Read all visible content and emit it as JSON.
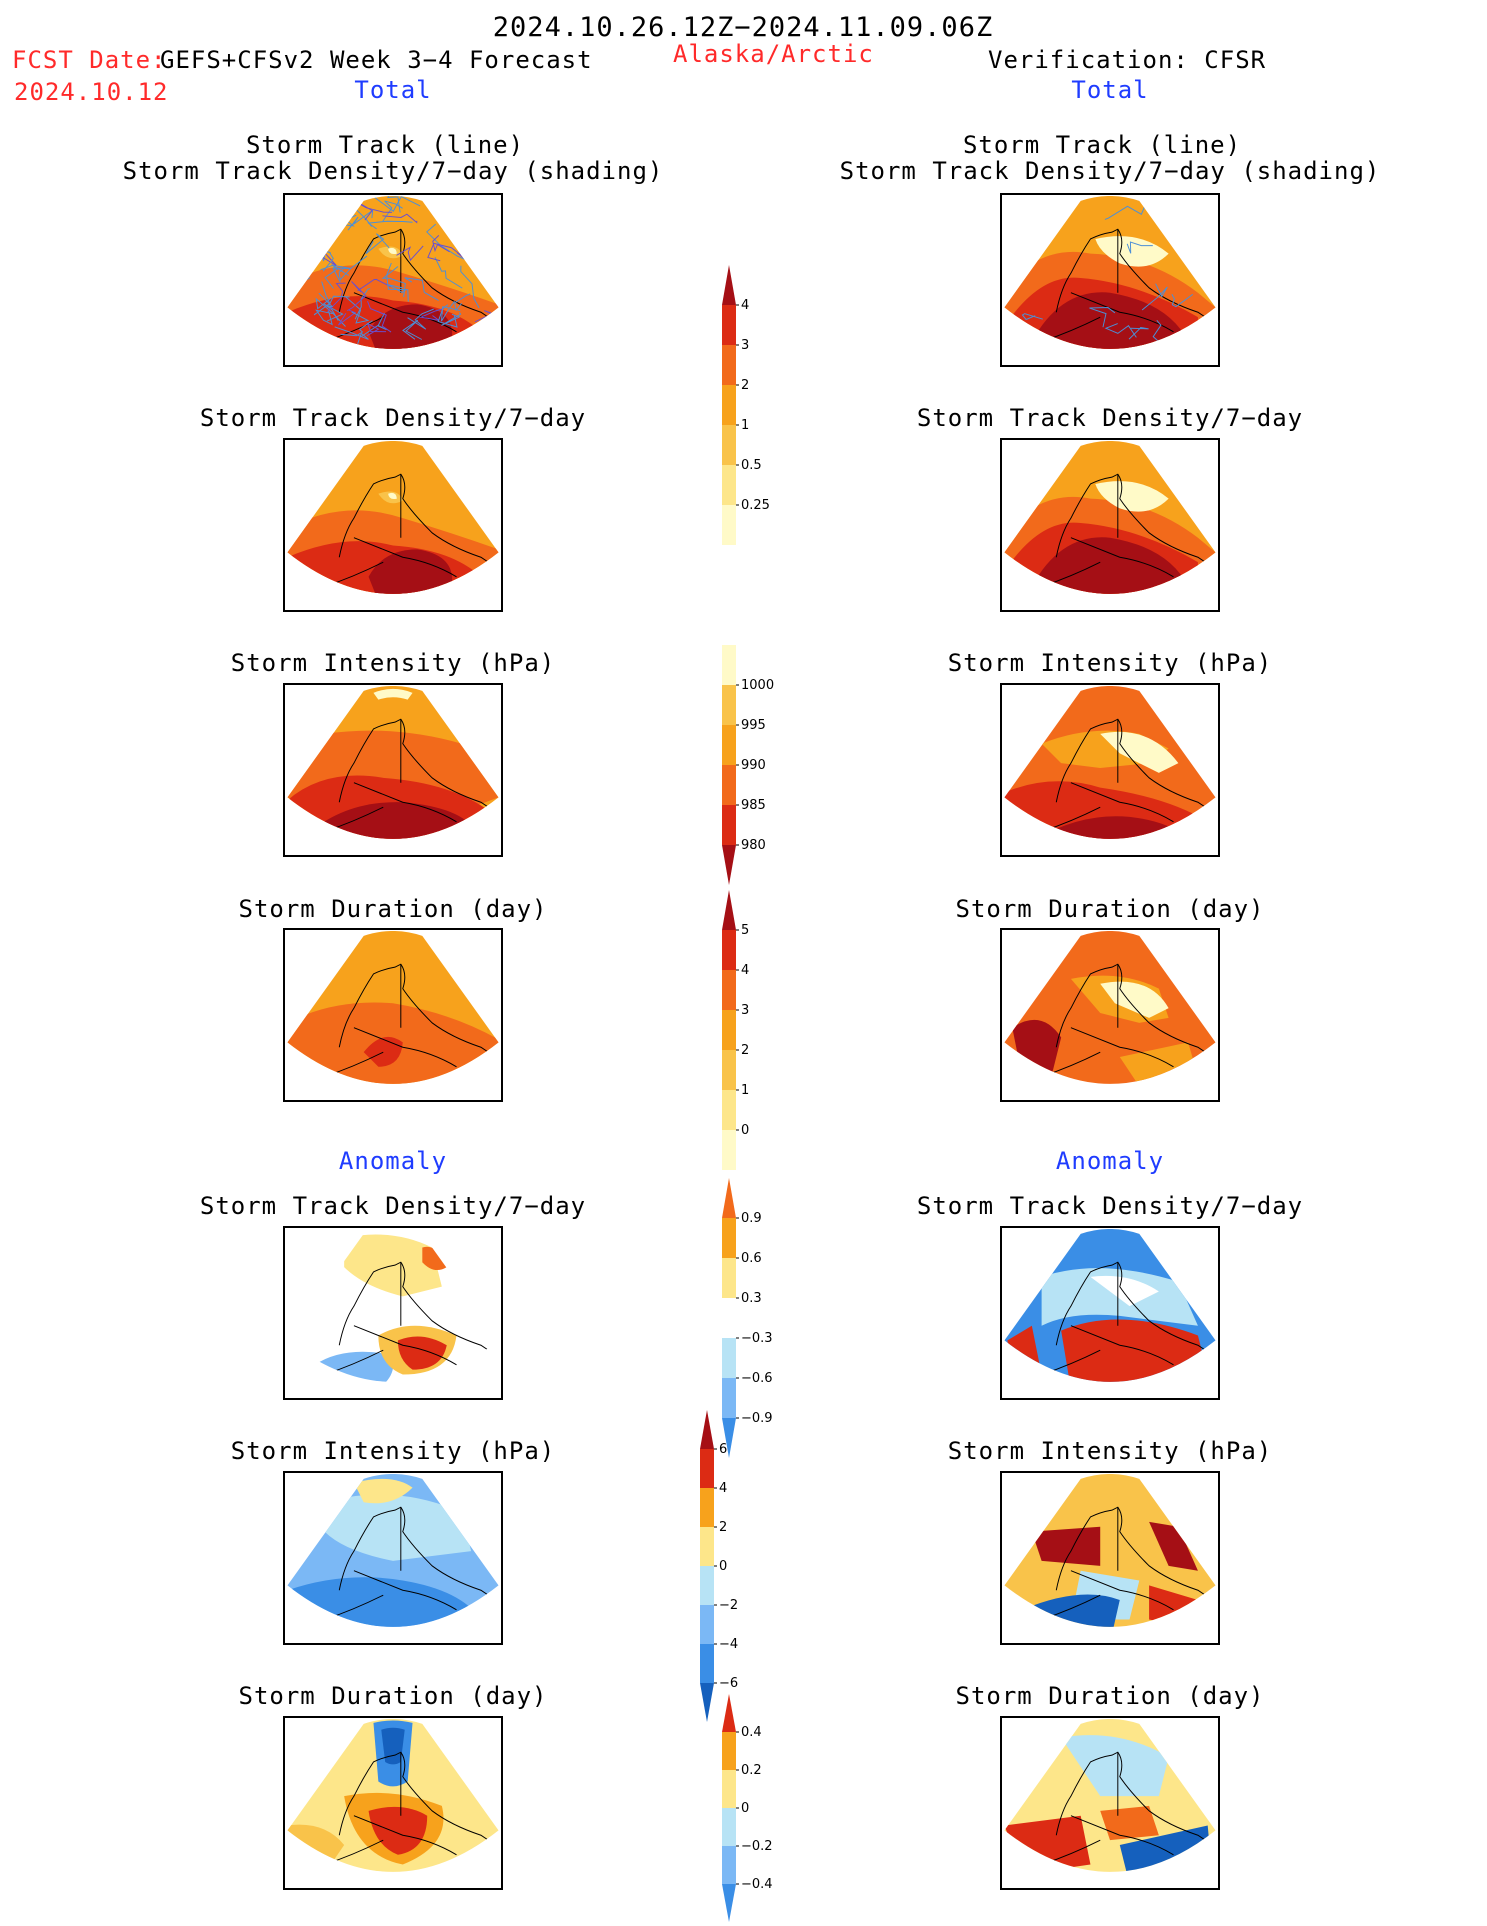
{
  "header": {
    "period": "2024.10.26.12Z−2024.11.09.06Z",
    "fcst_label": "FCST Date:",
    "fcst_model": "GEFS+CFSv2 Week 3−4 Forecast",
    "fcst_date": "2024.10.12",
    "region": "Alaska/Arctic",
    "verification": "Verification: CFSR",
    "left_section": "Total",
    "right_section": "Total",
    "left_anomaly": "Anomaly",
    "right_anomaly": "Anomaly"
  },
  "titles": {
    "track_line": "Storm Track (line)",
    "track_density_shading": "Storm Track Density/7−day (shading)",
    "track_density": "Storm Track Density/7−day",
    "intensity": "Storm Intensity (hPa)",
    "duration": "Storm Duration (day)"
  },
  "colorbars": {
    "density_total": [
      "4",
      "3",
      "2",
      "1",
      "0.5",
      "0.25"
    ],
    "intensity_total": [
      "1000",
      "995",
      "990",
      "985",
      "980"
    ],
    "duration_total": [
      "5",
      "4",
      "3",
      "2",
      "1",
      "0"
    ],
    "density_anom": [
      "0.9",
      "0.6",
      "0.3",
      "−0.3",
      "−0.6",
      "−0.9"
    ],
    "intensity_anom": [
      "6",
      "4",
      "2",
      "0",
      "−2",
      "−4",
      "−6"
    ],
    "duration_anom": [
      "0.4",
      "0.2",
      "0",
      "−0.2",
      "−0.4"
    ]
  },
  "colors": {
    "warm": [
      "#fffac8",
      "#fde68a",
      "#f9c34a",
      "#f7a21c",
      "#f26a1b",
      "#dc2b14",
      "#a50f15"
    ],
    "cool": [
      "#1560bd",
      "#3a8ee6",
      "#7bb8f5",
      "#b7e3f5",
      "#ffffff"
    ],
    "track_line": "#4c8fd6",
    "fcst_red": "#ff2a2a",
    "section_blue": "#1f3cff"
  },
  "chart_data": [
    {
      "type": "heatmap",
      "title": "Storm Track (line) / Storm Track Density/7−day (shading)",
      "source": "forecast",
      "region": "Alaska/Arctic",
      "colorbar": "density_total"
    },
    {
      "type": "heatmap",
      "title": "Storm Track (line) / Storm Track Density/7−day (shading)",
      "source": "verification",
      "region": "Alaska/Arctic",
      "colorbar": "density_total"
    },
    {
      "type": "heatmap",
      "title": "Storm Track Density/7−day",
      "source": "forecast",
      "colorbar": "density_total"
    },
    {
      "type": "heatmap",
      "title": "Storm Track Density/7−day",
      "source": "verification",
      "colorbar": "density_total"
    },
    {
      "type": "heatmap",
      "title": "Storm Intensity (hPa)",
      "source": "forecast",
      "colorbar": "intensity_total"
    },
    {
      "type": "heatmap",
      "title": "Storm Intensity (hPa)",
      "source": "verification",
      "colorbar": "intensity_total"
    },
    {
      "type": "heatmap",
      "title": "Storm Duration (day)",
      "source": "forecast",
      "colorbar": "duration_total"
    },
    {
      "type": "heatmap",
      "title": "Storm Duration (day)",
      "source": "verification",
      "colorbar": "duration_total"
    },
    {
      "type": "heatmap",
      "title": "Anomaly Storm Track Density/7−day",
      "source": "forecast",
      "colorbar": "density_anom"
    },
    {
      "type": "heatmap",
      "title": "Anomaly Storm Track Density/7−day",
      "source": "verification",
      "colorbar": "density_anom"
    },
    {
      "type": "heatmap",
      "title": "Anomaly Storm Intensity (hPa)",
      "source": "forecast",
      "colorbar": "intensity_anom"
    },
    {
      "type": "heatmap",
      "title": "Anomaly Storm Intensity (hPa)",
      "source": "verification",
      "colorbar": "intensity_anom"
    },
    {
      "type": "heatmap",
      "title": "Anomaly Storm Duration (day)",
      "source": "forecast",
      "colorbar": "duration_anom"
    },
    {
      "type": "heatmap",
      "title": "Anomaly Storm Duration (day)",
      "source": "verification",
      "colorbar": "duration_anom"
    }
  ]
}
